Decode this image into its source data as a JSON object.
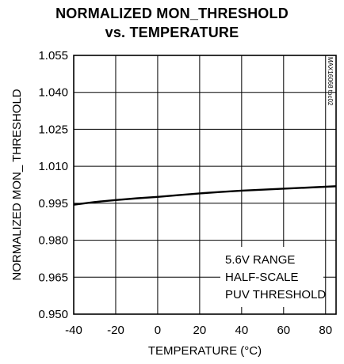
{
  "chart_data": {
    "type": "line",
    "title_line1": "NORMALIZED MON_THRESHOLD",
    "title_line2": "vs. TEMPERATURE",
    "xlabel": "TEMPERATURE (°C)",
    "ylabel": "NORMALIZED MON_ THRESHOLD",
    "xlim": [
      -40,
      85
    ],
    "ylim": [
      0.95,
      1.055
    ],
    "x_ticks": [
      "-40",
      "-20",
      "0",
      "20",
      "40",
      "60",
      "80"
    ],
    "y_ticks": [
      "1.055",
      "1.040",
      "1.025",
      "1.010",
      "0.995",
      "0.980",
      "0.965",
      "0.950"
    ],
    "grid": true,
    "annotation": [
      "5.6V RANGE",
      "HALF-SCALE",
      "PUV THRESHOLD"
    ],
    "watermark": "MAX16068 toc02",
    "series": [
      {
        "x": [
          -40,
          -30,
          -20,
          -10,
          0,
          10,
          20,
          30,
          40,
          50,
          60,
          70,
          80,
          85
        ],
        "y": [
          0.9944,
          0.9955,
          0.9963,
          0.997,
          0.9976,
          0.9983,
          0.999,
          0.9996,
          1.0001,
          1.0005,
          1.0009,
          1.0013,
          1.0017,
          1.0019
        ]
      }
    ]
  }
}
